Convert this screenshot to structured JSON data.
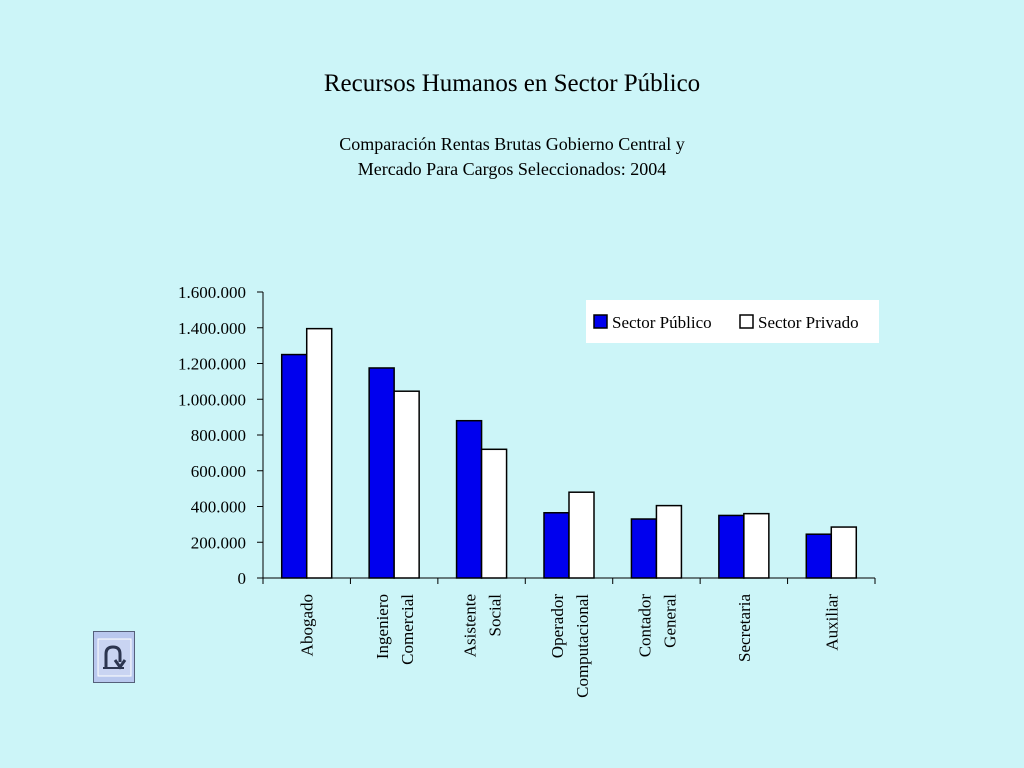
{
  "slide": {
    "title": "Recursos Humanos en Sector Público",
    "subtitle_line1": "Comparación Rentas Brutas Gobierno Central y",
    "subtitle_line2": "Mercado Para Cargos Seleccionados: 2004"
  },
  "nav": {
    "back_icon": "u-turn-back-arrow-icon"
  },
  "chart_data": {
    "type": "bar",
    "categories": [
      [
        "Abogado"
      ],
      [
        "Ingeniero",
        "Comercial"
      ],
      [
        "Asistente",
        "Social"
      ],
      [
        "Operador",
        "Computacional"
      ],
      [
        "Contador",
        "General"
      ],
      [
        "Secretaria"
      ],
      [
        "Auxiliar"
      ]
    ],
    "series": [
      {
        "name": "Sector Público",
        "color": "#0000ee",
        "values": [
          1250000,
          1175000,
          880000,
          365000,
          330000,
          350000,
          245000
        ]
      },
      {
        "name": "Sector Privado",
        "color": "#ffffff",
        "values": [
          1395000,
          1045000,
          720000,
          480000,
          405000,
          360000,
          285000
        ]
      }
    ],
    "yticks": [
      "0",
      "200.000",
      "400.000",
      "600.000",
      "800.000",
      "1.000.000",
      "1.200.000",
      "1.400.000",
      "1.600.000"
    ],
    "ylim": [
      0,
      1600000
    ],
    "grid": false,
    "legend_position": "top-right"
  }
}
